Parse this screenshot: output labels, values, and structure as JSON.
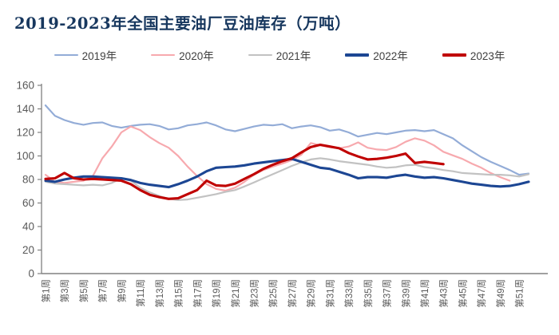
{
  "title": "2019-2023年全国主要油厂豆油库存（万吨）",
  "chart_data": {
    "type": "line",
    "title": "2019-2023年全国主要油厂豆油库存（万吨）",
    "xlabel": "",
    "ylabel": "",
    "ylim": [
      0,
      160
    ],
    "y_ticks": [
      0,
      20,
      40,
      60,
      80,
      100,
      120,
      140,
      160
    ],
    "x_unit": "周",
    "x_weeks": 52,
    "x_tick_labels": [
      "第1周",
      "第3周",
      "第5周",
      "第7周",
      "第9周",
      "第11周",
      "第13周",
      "第15周",
      "第17周",
      "第19周",
      "第21周",
      "第23周",
      "第25周",
      "第27周",
      "第29周",
      "第31周",
      "第33周",
      "第35周",
      "第37周",
      "第39周",
      "第41周",
      "第43周",
      "第45周",
      "第47周",
      "第49周",
      "第51周"
    ],
    "grid": false,
    "legend_position": "top",
    "axis_color": "#808080",
    "tick_text_color": "#595959",
    "title_color": "#17375E",
    "series": [
      {
        "name": "2019年",
        "color": "#93ACD7",
        "width": 2.2,
        "values": [
          143,
          134,
          130.5,
          128,
          126.5,
          128,
          128.5,
          125.5,
          124,
          125.5,
          126.5,
          127,
          125.5,
          122.5,
          123.5,
          126,
          127,
          128.5,
          126,
          122.5,
          121,
          123,
          125,
          126.5,
          126,
          127,
          123.5,
          125,
          126,
          124.5,
          121.5,
          122.5,
          120,
          116.5,
          118,
          119.5,
          118.5,
          120,
          121.5,
          122,
          121,
          122,
          118.5,
          115,
          109,
          104,
          99,
          95,
          91.5,
          88,
          84,
          85
        ]
      },
      {
        "name": "2020年",
        "color": "#F7A9AE",
        "width": 2.2,
        "values": [
          84,
          78,
          77,
          78,
          79,
          83,
          98,
          108,
          120,
          125,
          122,
          116,
          111,
          107,
          100,
          91,
          83,
          76,
          72,
          70.5,
          73,
          78,
          84,
          88,
          91,
          93.5,
          96.5,
          101,
          111,
          109,
          107.5,
          106.5,
          108,
          111.5,
          107,
          105.5,
          105,
          107.5,
          112,
          115,
          113,
          109,
          103.5,
          100.5,
          97.5,
          93.5,
          90,
          85.5,
          82,
          79,
          null,
          null
        ]
      },
      {
        "name": "2021年",
        "color": "#C2C2C2",
        "width": 2.2,
        "values": [
          78,
          76.5,
          76,
          75.5,
          75,
          75.5,
          75,
          77,
          81,
          79,
          73,
          69,
          66,
          63.5,
          62.5,
          63,
          64.5,
          66,
          67.5,
          69.5,
          71,
          74,
          77.5,
          81,
          84.5,
          88,
          91.5,
          94.5,
          97,
          98,
          97,
          95.5,
          94.5,
          93.5,
          92.5,
          91,
          90,
          90.5,
          92,
          92.5,
          90.5,
          89.5,
          88,
          87,
          85.5,
          85,
          84.5,
          84,
          84,
          83.5,
          82.5,
          84.5
        ]
      },
      {
        "name": "2022年",
        "color": "#1C4693",
        "width": 3.1,
        "values": [
          79,
          78,
          80,
          81.5,
          82.5,
          82.5,
          82,
          81.5,
          81,
          79.5,
          77,
          75.5,
          74.5,
          73.5,
          76,
          79,
          82.5,
          87,
          90,
          90.5,
          91,
          92,
          93.5,
          94.5,
          95.5,
          96.5,
          97.5,
          95,
          92.5,
          90,
          89,
          86.5,
          84,
          81,
          82,
          82,
          81.5,
          83,
          84,
          82.5,
          81.5,
          82,
          81,
          79.5,
          78,
          76.5,
          75.5,
          74.5,
          74,
          74.5,
          76,
          78
        ]
      },
      {
        "name": "2023年",
        "color": "#C00000",
        "width": 3.1,
        "values": [
          80.5,
          81,
          85.5,
          81,
          80,
          80.5,
          80,
          79.5,
          79,
          76,
          71,
          67,
          65,
          63.5,
          64,
          67.5,
          71,
          79,
          75,
          74.5,
          76.5,
          80.5,
          84.5,
          89,
          92.5,
          95.5,
          98,
          103,
          107.5,
          109.5,
          108,
          106.5,
          102.5,
          99.5,
          97,
          97.5,
          98.5,
          100,
          102,
          94,
          95,
          94,
          93,
          null,
          null,
          null,
          null,
          null,
          null,
          null,
          null,
          null
        ]
      }
    ]
  }
}
